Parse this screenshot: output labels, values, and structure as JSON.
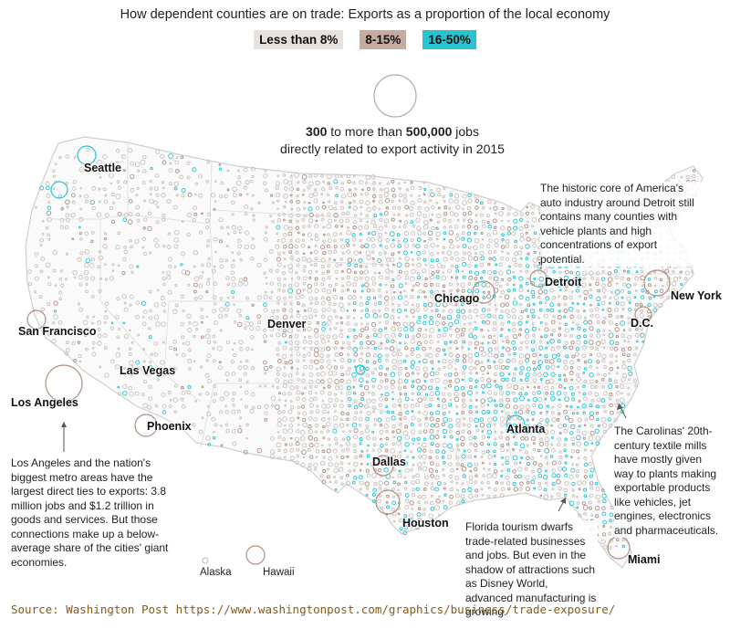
{
  "title": "How dependent counties are on trade: Exports as a proportion of the local economy",
  "legend": [
    {
      "label": "Less than 8%",
      "color": "#e8e2de"
    },
    {
      "label": "8-15%",
      "color": "#c6aba1"
    },
    {
      "label": "16-50%",
      "color": "#27c3d0"
    }
  ],
  "size_legend": {
    "min_value": "300",
    "connector": " to more than ",
    "max_value": "500,000",
    "suffix": " jobs",
    "line2": "directly related to export activity in 2015"
  },
  "cities": {
    "seattle": "Seattle",
    "san_francisco": "San Francisco",
    "las_vegas": "Las Vegas",
    "los_angeles": "Los Angeles",
    "phoenix": "Phoenix",
    "denver": "Denver",
    "dallas": "Dallas",
    "houston": "Houston",
    "chicago": "Chicago",
    "detroit": "Detroit",
    "atlanta": "Atlanta",
    "new_york": "New York",
    "dc": "D.C.",
    "miami": "Miami"
  },
  "insets": {
    "alaska": "Alaska",
    "hawaii": "Hawaii"
  },
  "annotations": {
    "detroit": "The historic core of America's auto industry around Detroit still contains many counties with vehicle plants and high concentrations of export potential.",
    "carolinas": "The Carolinas' 20th-century textile mills have mostly given way to plants making exportable products like vehicles, jet engines, electronics and pharmaceuticals.",
    "florida": "Florida tourism dwarfs trade-related businesses and jobs. But even in the shadow of attractions such as Disney World, advanced manufacturing is growing.",
    "los_angeles": "Los Angeles and the nation's biggest metro areas have the largest direct ties to exports: 3.8 million jobs and $1.2 trillion in goods and services. But those connections make up a below-average share of the cities' giant economies."
  },
  "source": "Source: Washington Post https://www.washingtonpost.com/graphics/business/trade-exposure/",
  "colors": {
    "low": "#c9c2be",
    "mid": "#b08f84",
    "high": "#27c3d0",
    "state_border": "#d8d8d8",
    "source_text": "#8a5a14"
  }
}
